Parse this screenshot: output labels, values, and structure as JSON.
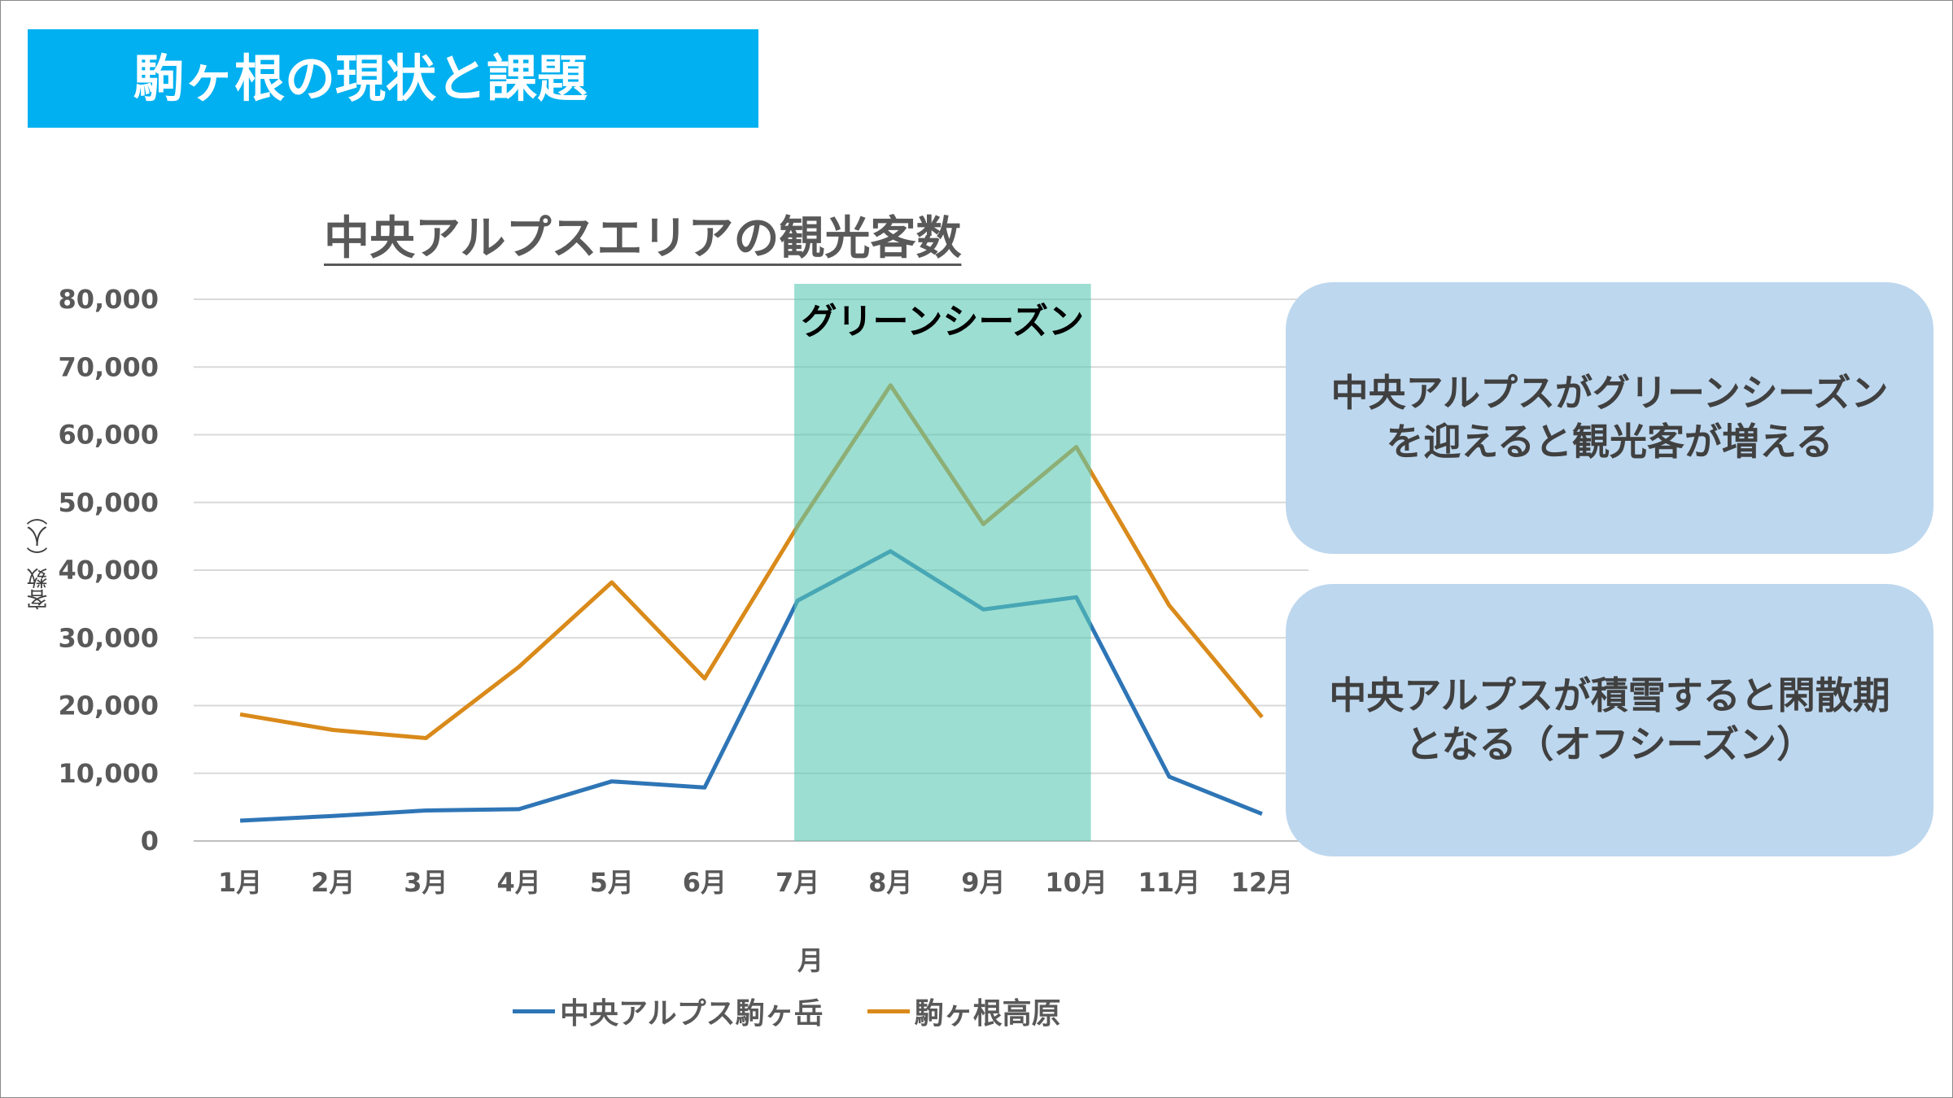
{
  "slide": {
    "title": "駒ヶ根の現状と課題"
  },
  "chart_data": {
    "type": "line",
    "title": "中央アルプスエリアの観光客数",
    "xlabel": "月",
    "ylabel": "客数（人）",
    "categories": [
      "1月",
      "2月",
      "3月",
      "4月",
      "5月",
      "6月",
      "7月",
      "8月",
      "9月",
      "10月",
      "11月",
      "12月"
    ],
    "ylim": [
      0,
      80000
    ],
    "yticks": [
      0,
      10000,
      20000,
      30000,
      40000,
      50000,
      60000,
      70000,
      80000
    ],
    "ytick_labels": [
      "0",
      "10,000",
      "20,000",
      "30,000",
      "40,000",
      "50,000",
      "60,000",
      "70,000",
      "80,000"
    ],
    "grid": "horizontal",
    "legend_position": "bottom",
    "series": [
      {
        "name": "中央アルプス駒ヶ岳",
        "color": "#2e75b6",
        "values": [
          3000,
          3700,
          4500,
          4700,
          8800,
          7900,
          35500,
          42800,
          34200,
          36000,
          9500,
          4000
        ]
      },
      {
        "name": "駒ヶ根高原",
        "color": "#d98a1a",
        "values": [
          18700,
          16400,
          15200,
          25700,
          38200,
          24000,
          46500,
          67300,
          46800,
          58200,
          34800,
          18300
        ]
      }
    ],
    "highlight": {
      "label": "グリーンシーズン",
      "from": "7月",
      "to": "10月",
      "color": "#5ac8b4"
    }
  },
  "callouts": [
    {
      "text": "中央アルプスがグリーンシーズンを迎えると観光客が増える"
    },
    {
      "text": "中央アルプスが積雪すると閑散期となる（オフシーズン）"
    }
  ]
}
